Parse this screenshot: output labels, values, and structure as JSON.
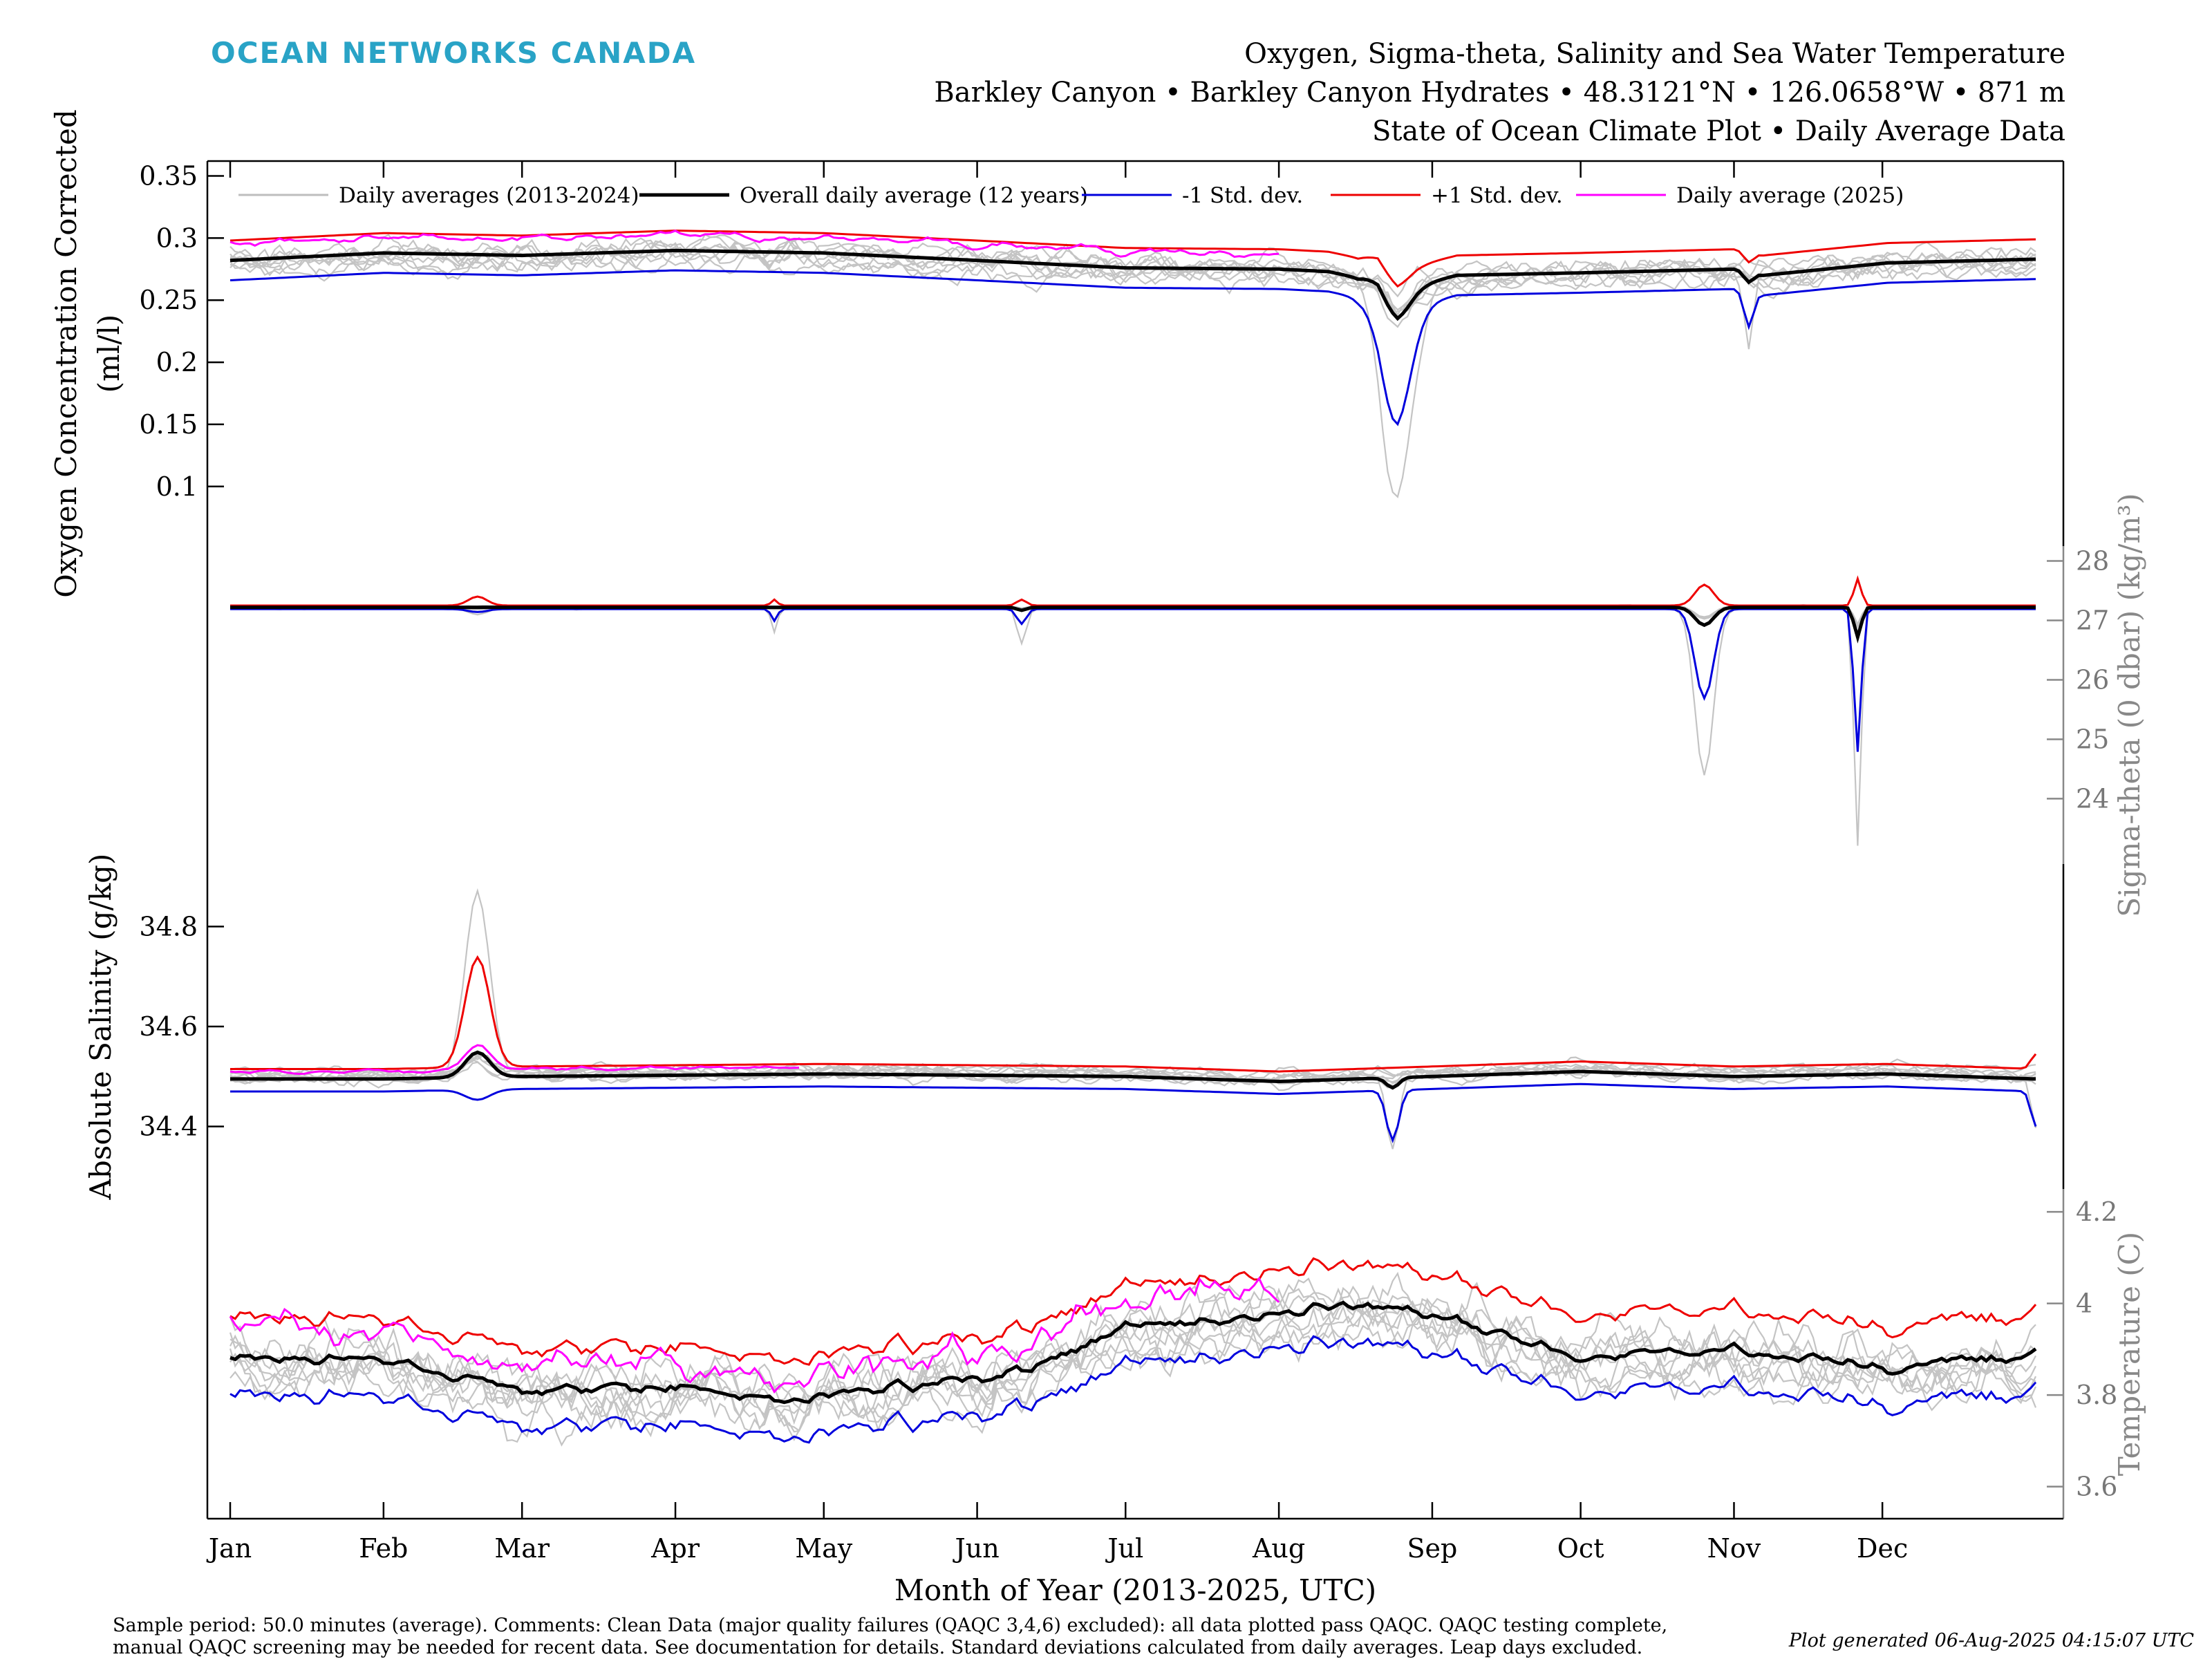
{
  "brand": "OCEAN NETWORKS CANADA",
  "title_lines": [
    "Oxygen, Sigma-theta, Salinity and Sea Water Temperature",
    "Barkley Canyon • Barkley Canyon Hydrates • 48.3121°N • 126.0658°W • 871 m",
    "State of Ocean Climate Plot • Daily Average Data"
  ],
  "footer": {
    "line1": "Sample period: 50.0 minutes (average). Comments: Clean Data (major quality failures (QAQC 3,4,6) excluded): all data plotted pass QAQC. QAQC testing complete,",
    "line2": "manual QAQC screening may be needed for recent data. See documentation for details. Standard deviations calculated from daily averages. Leap days excluded.",
    "generated": "Plot generated 06-Aug-2025 04:15:07 UTC"
  },
  "chart_data": {
    "type": "line",
    "xlabel": "Month of Year (2013-2025, UTC)",
    "x_ticks": [
      "Jan",
      "Feb",
      "Mar",
      "Apr",
      "May",
      "Jun",
      "Jul",
      "Aug",
      "Sep",
      "Oct",
      "Nov",
      "Dec"
    ],
    "xlim_day": [
      0,
      365
    ],
    "legend": {
      "position": "top",
      "entries": [
        {
          "label": "Daily averages (2013-2024)",
          "color": "#bdbdbd"
        },
        {
          "label": "Overall daily average (12 years)",
          "color": "#000000"
        },
        {
          "label": "-1 Std. dev.",
          "color": "#0000dd"
        },
        {
          "label": "+1 Std. dev.",
          "color": "#ee0000"
        },
        {
          "label": "Daily average (2025)",
          "color": "#ff00ff"
        }
      ]
    },
    "panels": [
      {
        "id": "oxygen",
        "ylabel_lines": [
          "Oxygen Concentration Corrected",
          "(ml/l)"
        ],
        "axis_side": "left",
        "axis_color": "#000000",
        "ticks": [
          "0.35",
          "0.3",
          "0.25",
          "0.2",
          "0.15",
          "0.1"
        ],
        "tick_values": [
          0.35,
          0.3,
          0.25,
          0.2,
          0.15,
          0.1
        ],
        "ylim": [
          0.052,
          0.362
        ],
        "mean_knots": [
          [
            0,
            0.282
          ],
          [
            31,
            0.288
          ],
          [
            59,
            0.286
          ],
          [
            90,
            0.29
          ],
          [
            120,
            0.288
          ],
          [
            151,
            0.282
          ],
          [
            181,
            0.276
          ],
          [
            212,
            0.275
          ],
          [
            222,
            0.273
          ],
          [
            228,
            0.268
          ],
          [
            232,
            0.273
          ],
          [
            236,
            0.255
          ],
          [
            240,
            0.262
          ],
          [
            248,
            0.27
          ],
          [
            273,
            0.272
          ],
          [
            304,
            0.275
          ],
          [
            310,
            0.27
          ],
          [
            335,
            0.28
          ],
          [
            365,
            0.283
          ]
        ],
        "std_plus": 0.016,
        "std_minus": 0.016,
        "events": [
          {
            "day": 235.5,
            "width": 5,
            "mean": -0.02,
            "minus": -0.07,
            "plus": 0.01,
            "gray": -0.17,
            "upshift": 0.03
          },
          {
            "day": 307,
            "width": 1.5,
            "mean": -0.008,
            "minus": -0.02,
            "plus": 0.0,
            "gray": -0.06
          }
        ],
        "year2025": {
          "from": 0,
          "to": 212,
          "offset": 0.013,
          "noise": 0.004
        },
        "gray_noise": 0.012
      },
      {
        "id": "sigma",
        "ylabel_lines": [
          "Sigma-theta (0 dbar) (kg/m³)"
        ],
        "axis_side": "right",
        "axis_color": "#888888",
        "ticks": [
          "28",
          "27",
          "26",
          "25",
          "24"
        ],
        "tick_values": [
          28,
          27,
          26,
          25,
          24
        ],
        "ylim": [
          22.9,
          28.25
        ],
        "mean_knots": [
          [
            0,
            27.22
          ],
          [
            365,
            27.22
          ]
        ],
        "std_plus": 0.03,
        "std_minus": 0.03,
        "events": [
          {
            "day": 50,
            "width": 3,
            "mean": 0.0,
            "minus": -0.05,
            "plus": 0.15,
            "gray": -0.1
          },
          {
            "day": 110,
            "width": 1,
            "mean": 0.0,
            "minus": -0.2,
            "plus": 0.1,
            "gray": -0.4
          },
          {
            "day": 160,
            "width": 1.5,
            "mean": -0.05,
            "minus": -0.2,
            "plus": 0.15,
            "gray": -0.6
          },
          {
            "day": 298,
            "width": 3,
            "mean": -0.3,
            "minus": -1.2,
            "plus": 0.65,
            "gray": -2.8
          },
          {
            "day": 329,
            "width": 1.2,
            "mean": -0.5,
            "minus": -1.9,
            "plus": 0.95,
            "gray": -4.0
          }
        ],
        "year2025": {
          "from": 0,
          "to": 212,
          "offset": 0.0,
          "noise": 0.01
        },
        "gray_noise": 0.02
      },
      {
        "id": "salinity",
        "ylabel_lines": [
          "Absolute Salinity (g/kg)"
        ],
        "axis_side": "left",
        "axis_color": "#000000",
        "ticks": [
          "34.8",
          "34.6",
          "34.4"
        ],
        "tick_values": [
          34.8,
          34.6,
          34.4
        ],
        "ylim": [
          34.275,
          34.925
        ],
        "mean_knots": [
          [
            0,
            34.495
          ],
          [
            31,
            34.495
          ],
          [
            59,
            34.5
          ],
          [
            120,
            34.505
          ],
          [
            181,
            34.5
          ],
          [
            212,
            34.49
          ],
          [
            243,
            34.5
          ],
          [
            273,
            34.51
          ],
          [
            304,
            34.5
          ],
          [
            335,
            34.505
          ],
          [
            365,
            34.495
          ]
        ],
        "std_plus": 0.02,
        "std_minus": 0.025,
        "events": [
          {
            "day": 50,
            "width": 4,
            "mean": 0.05,
            "minus": -0.07,
            "plus": 0.17,
            "gray": 0.37
          },
          {
            "day": 235,
            "width": 2,
            "mean": -0.02,
            "minus": -0.08,
            "plus": 0.02,
            "gray": -0.15
          },
          {
            "day": 365,
            "width": 1.5,
            "mean": 0.0,
            "minus": -0.07,
            "plus": 0.03,
            "gray": -0.1
          }
        ],
        "year2025": {
          "from": 0,
          "to": 115,
          "offset": 0.015,
          "noise": 0.005
        },
        "gray_noise": 0.015
      },
      {
        "id": "temperature",
        "ylabel_lines": [
          "Temperature (C)"
        ],
        "axis_side": "right",
        "axis_color": "#888888",
        "ticks": [
          "4.2",
          "4",
          "3.8",
          "3.6"
        ],
        "tick_values": [
          4.2,
          4.0,
          3.8,
          3.6
        ],
        "ylim": [
          3.53,
          4.25
        ],
        "mean_knots": [
          [
            0,
            3.88
          ],
          [
            31,
            3.88
          ],
          [
            59,
            3.81
          ],
          [
            90,
            3.82
          ],
          [
            110,
            3.79
          ],
          [
            130,
            3.81
          ],
          [
            160,
            3.85
          ],
          [
            181,
            3.95
          ],
          [
            212,
            3.97
          ],
          [
            225,
            4.0
          ],
          [
            243,
            3.98
          ],
          [
            273,
            3.88
          ],
          [
            304,
            3.9
          ],
          [
            335,
            3.86
          ],
          [
            365,
            3.89
          ]
        ],
        "std_plus": 0.09,
        "std_minus": 0.08,
        "events": [],
        "year2025": {
          "from": 0,
          "to": 212,
          "offset": 0.05,
          "noise": 0.05
        },
        "gray_noise": 0.07,
        "mean_noise": 0.018
      }
    ]
  }
}
